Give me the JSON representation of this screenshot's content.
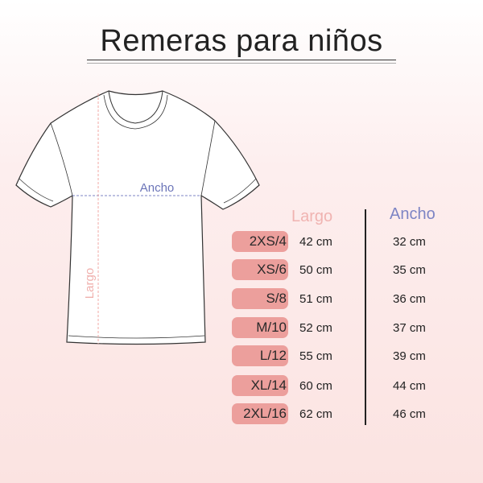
{
  "title": "Remeras para niños",
  "diagram": {
    "width_label": "Ancho",
    "length_label": "Largo"
  },
  "table": {
    "headers": {
      "length": "Largo",
      "width": "Ancho"
    },
    "colors": {
      "length": "#f0b3b1",
      "width": "#7d84c4",
      "badge": "#ec9f9c"
    },
    "rows": [
      {
        "size": "2XS/4",
        "length": "42 cm",
        "width": "32 cm"
      },
      {
        "size": "XS/6",
        "length": "50 cm",
        "width": "35 cm"
      },
      {
        "size": "S/8",
        "length": "51 cm",
        "width": "36 cm"
      },
      {
        "size": "M/10",
        "length": "52 cm",
        "width": "37 cm"
      },
      {
        "size": "L/12",
        "length": "55 cm",
        "width": "39 cm"
      },
      {
        "size": "XL/14",
        "length": "60 cm",
        "width": "44 cm"
      },
      {
        "size": "2XL/16",
        "length": "62 cm",
        "width": "46 cm"
      }
    ]
  }
}
